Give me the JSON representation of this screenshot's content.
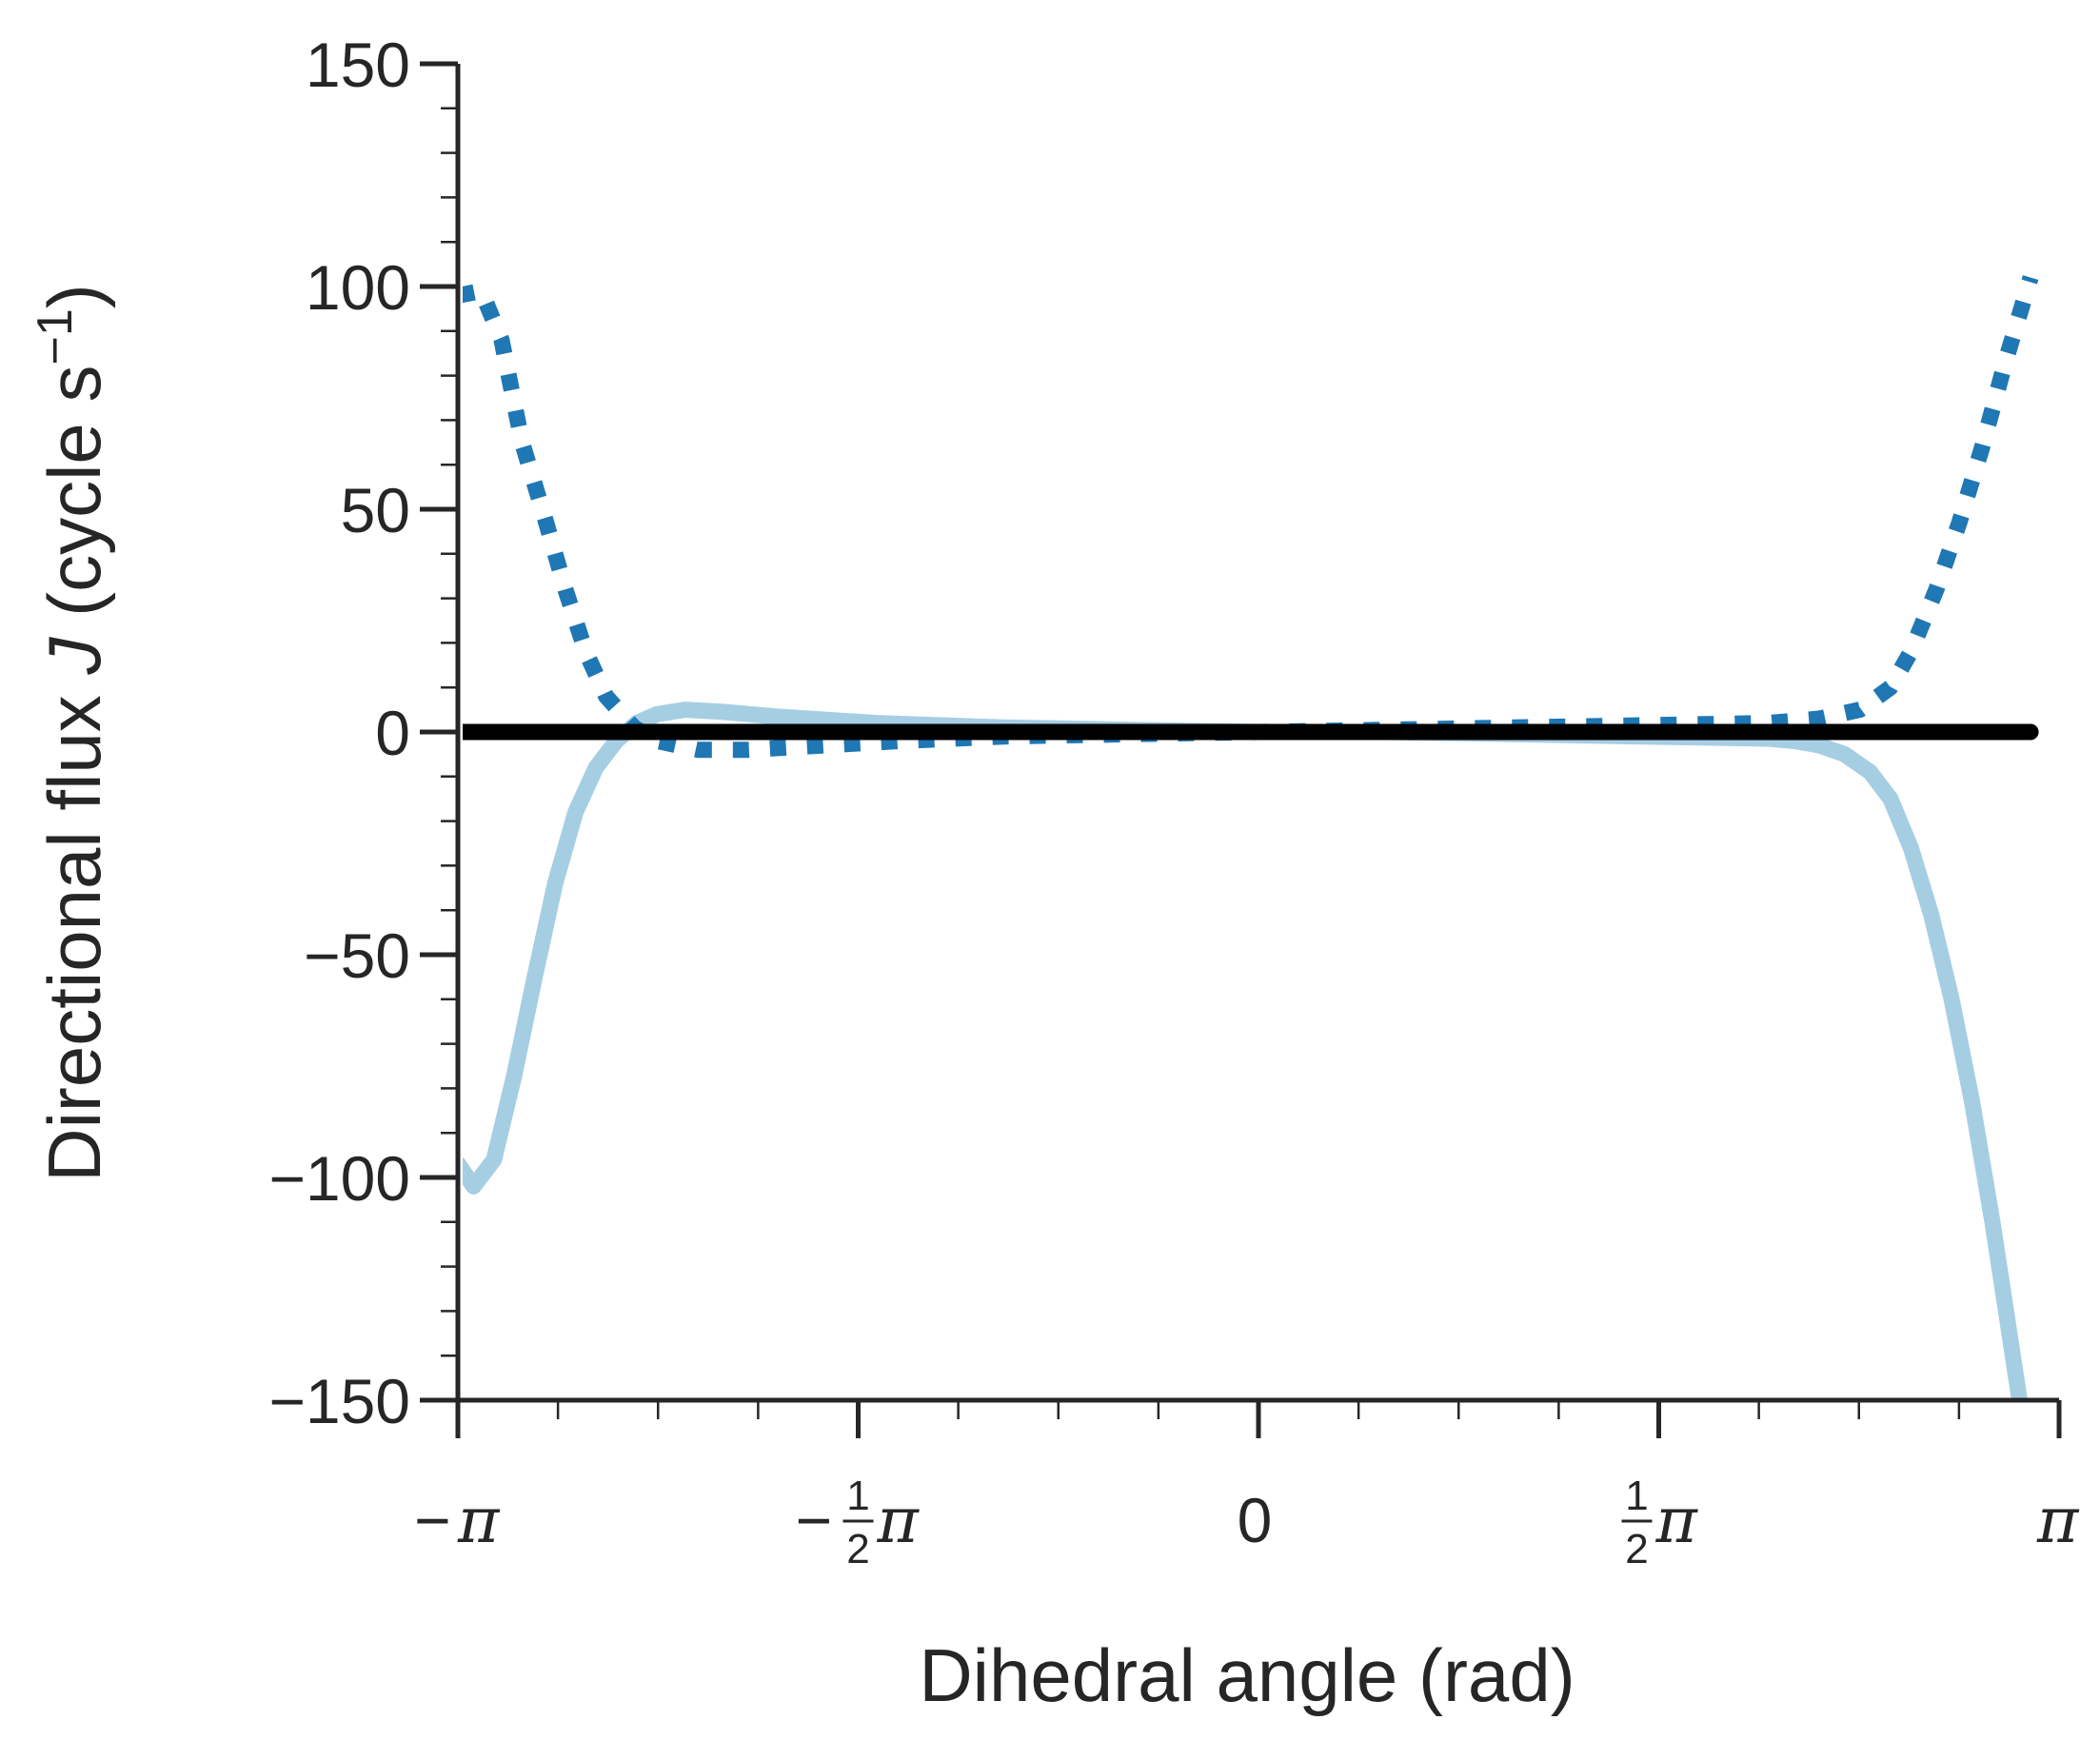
{
  "chart_data": {
    "type": "line",
    "title": "",
    "xlabel": "Dihedral angle (rad)",
    "ylabel": "Directional flux J (cycle s⁻¹)",
    "ylabel_parts": {
      "before": "Directional flux ",
      "italic": "J",
      "after": " (cycle s",
      "sup": "−1",
      "close": ")"
    },
    "xlim": [
      -3.14159,
      3.14159
    ],
    "ylim": [
      -150,
      150
    ],
    "yticks": [
      150,
      100,
      50,
      0,
      -50,
      -100,
      -150
    ],
    "ytick_labels": [
      "150",
      "100",
      "50",
      "0",
      "−50",
      "−100",
      "−150"
    ],
    "xticks": [
      {
        "value": -3.14159,
        "sign": "−",
        "frac": "",
        "sym": "π"
      },
      {
        "value": -1.5708,
        "sign": "−",
        "frac": "1/2",
        "sym": "π"
      },
      {
        "value": 0,
        "sign": "",
        "frac": "",
        "sym": "0"
      },
      {
        "value": 1.5708,
        "sign": "",
        "frac": "1/2",
        "sym": "π"
      },
      {
        "value": 3.14159,
        "sign": "",
        "frac": "",
        "sym": "π"
      }
    ],
    "grid": false,
    "series": [
      {
        "style": "dotted",
        "color": "#1f77b4",
        "x": [
          -3.14,
          -3.05,
          -2.97,
          -2.89,
          -2.8,
          -2.72,
          -2.64,
          -2.56,
          -2.45,
          -2.36,
          -2.2,
          -2.0,
          -1.7,
          -1.4,
          -1.0,
          -0.5,
          0.0,
          0.5,
          1.0,
          1.5,
          2.0,
          2.2,
          2.36,
          2.48,
          2.56,
          2.66,
          2.75,
          2.84,
          2.93,
          3.03
        ],
        "y": [
          98,
          99,
          88,
          65,
          48,
          32,
          18,
          8,
          1,
          -2,
          -4,
          -4,
          -3,
          -2,
          -1,
          -0.5,
          0,
          0.5,
          1,
          1.5,
          2,
          3,
          5,
          10,
          18,
          32,
          47,
          64,
          83,
          102
        ]
      },
      {
        "style": "solid",
        "color": "#a6cee3",
        "x": [
          -3.14,
          -3.08,
          -3.0,
          -2.92,
          -2.84,
          -2.76,
          -2.68,
          -2.6,
          -2.52,
          -2.44,
          -2.36,
          -2.25,
          -2.1,
          -1.9,
          -1.5,
          -1.0,
          -0.5,
          0.0,
          0.5,
          1.0,
          1.5,
          2.0,
          2.1,
          2.2,
          2.3,
          2.4,
          2.48,
          2.56,
          2.64,
          2.72,
          2.8,
          2.88,
          2.96,
          3.04,
          3.1
        ],
        "y": [
          -97,
          -102,
          -96,
          -77,
          -55,
          -34,
          -18,
          -8,
          -2,
          2,
          4,
          5,
          4.5,
          3.5,
          2,
          1,
          0.5,
          0,
          0,
          -0.5,
          -1,
          -1.5,
          -2,
          -3,
          -5,
          -9,
          -15,
          -26,
          -41,
          -60,
          -83,
          -110,
          -140,
          -170,
          -195
        ]
      },
      {
        "style": "solid-thick",
        "color": "#000000",
        "x": [
          -3.14159,
          3.03
        ],
        "y": [
          0,
          0
        ]
      }
    ]
  }
}
